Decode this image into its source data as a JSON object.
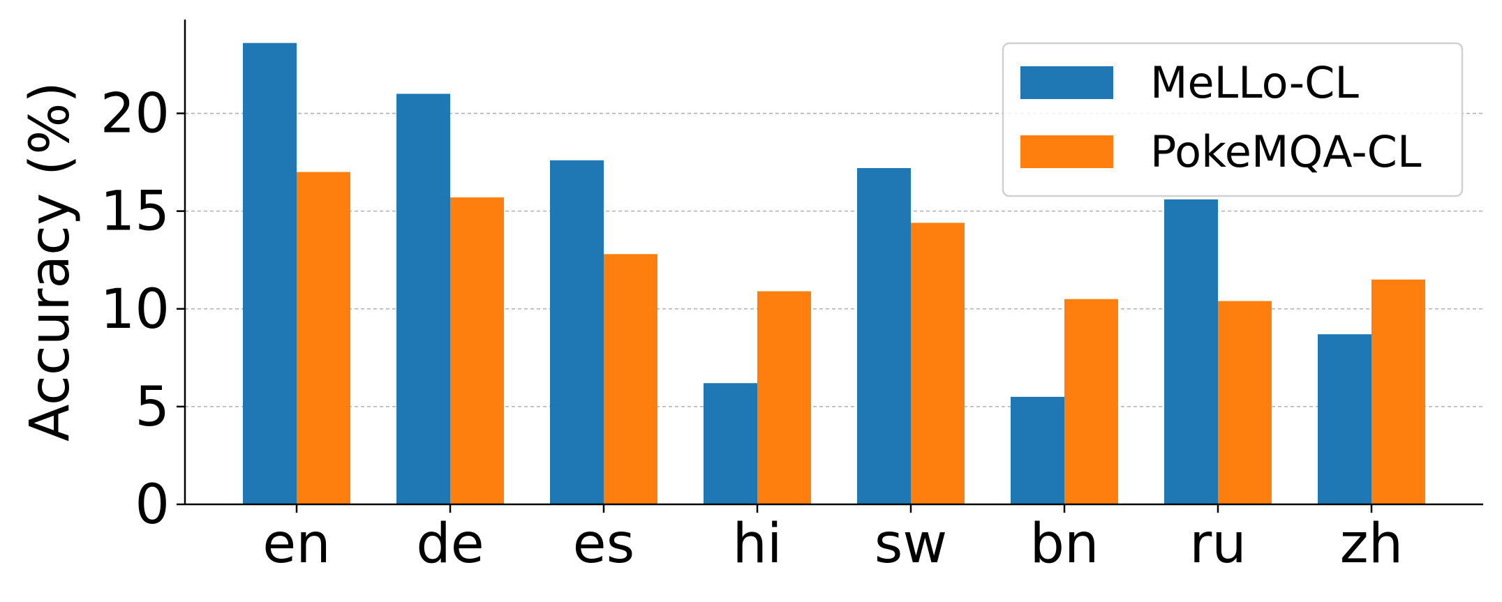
{
  "chart_data": {
    "type": "bar",
    "categories": [
      "en",
      "de",
      "es",
      "hi",
      "sw",
      "bn",
      "ru",
      "zh"
    ],
    "series": [
      {
        "name": "MeLLo-CL",
        "color": "#1f77b4",
        "values": [
          23.6,
          21.0,
          17.6,
          6.2,
          17.2,
          5.5,
          15.6,
          8.7
        ]
      },
      {
        "name": "PokeMQA-CL",
        "color": "#ff7f0e",
        "values": [
          17.0,
          15.7,
          12.8,
          10.9,
          14.4,
          10.5,
          10.4,
          11.5
        ]
      }
    ],
    "xlabel": "",
    "ylabel": "Accuracy (%)",
    "ylim": [
      0,
      24.8
    ],
    "yticks": [
      0,
      5,
      10,
      15,
      20
    ],
    "grid": "horizontal dashed",
    "legend_position": "top-right"
  }
}
